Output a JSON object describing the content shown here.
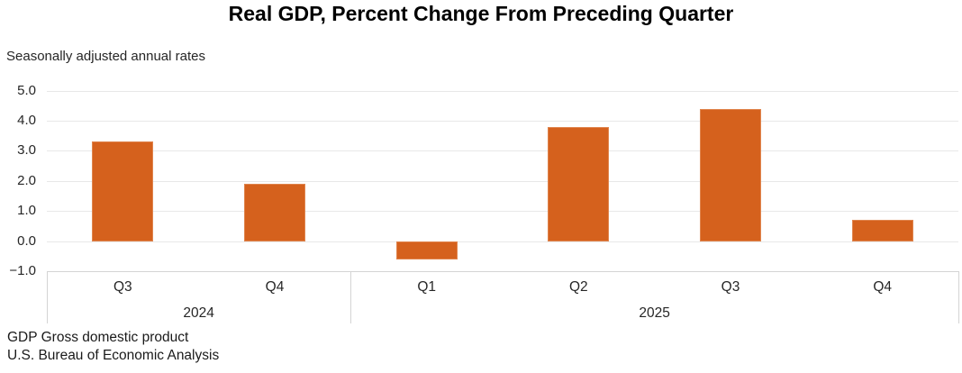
{
  "chart_data": {
    "type": "bar",
    "title": "Real GDP, Percent Change From Preceding Quarter",
    "subtitle": "Seasonally adjusted annual rates",
    "categories": [
      "Q3",
      "Q4",
      "Q1",
      "Q2",
      "Q3",
      "Q4"
    ],
    "values": [
      3.3,
      1.9,
      -0.6,
      3.8,
      4.4,
      0.7
    ],
    "groups": [
      {
        "label": "2024",
        "span": 2
      },
      {
        "label": "2025",
        "span": 4
      }
    ],
    "xlabel": "",
    "ylabel": "",
    "ylim": [
      -1.0,
      5.0
    ],
    "ytick_step": 1.0,
    "ytick_labels": [
      "5.0",
      "4.0",
      "3.0",
      "2.0",
      "1.0",
      "0.0",
      "−1.0"
    ],
    "grid": true,
    "legend": "none",
    "bar_color": "#D5611D",
    "bar_border_color": "#E0854E"
  },
  "footnotes": {
    "line1": "GDP Gross domestic product",
    "line2": "U.S. Bureau of Economic Analysis"
  },
  "colors": {
    "gridline": "#E8E8E8",
    "axis": "#D4D4D4",
    "text": "#262626",
    "title": "#000000"
  },
  "layout_note": "bar chart, no legend, horizontal gridlines on, two-tier category axis"
}
